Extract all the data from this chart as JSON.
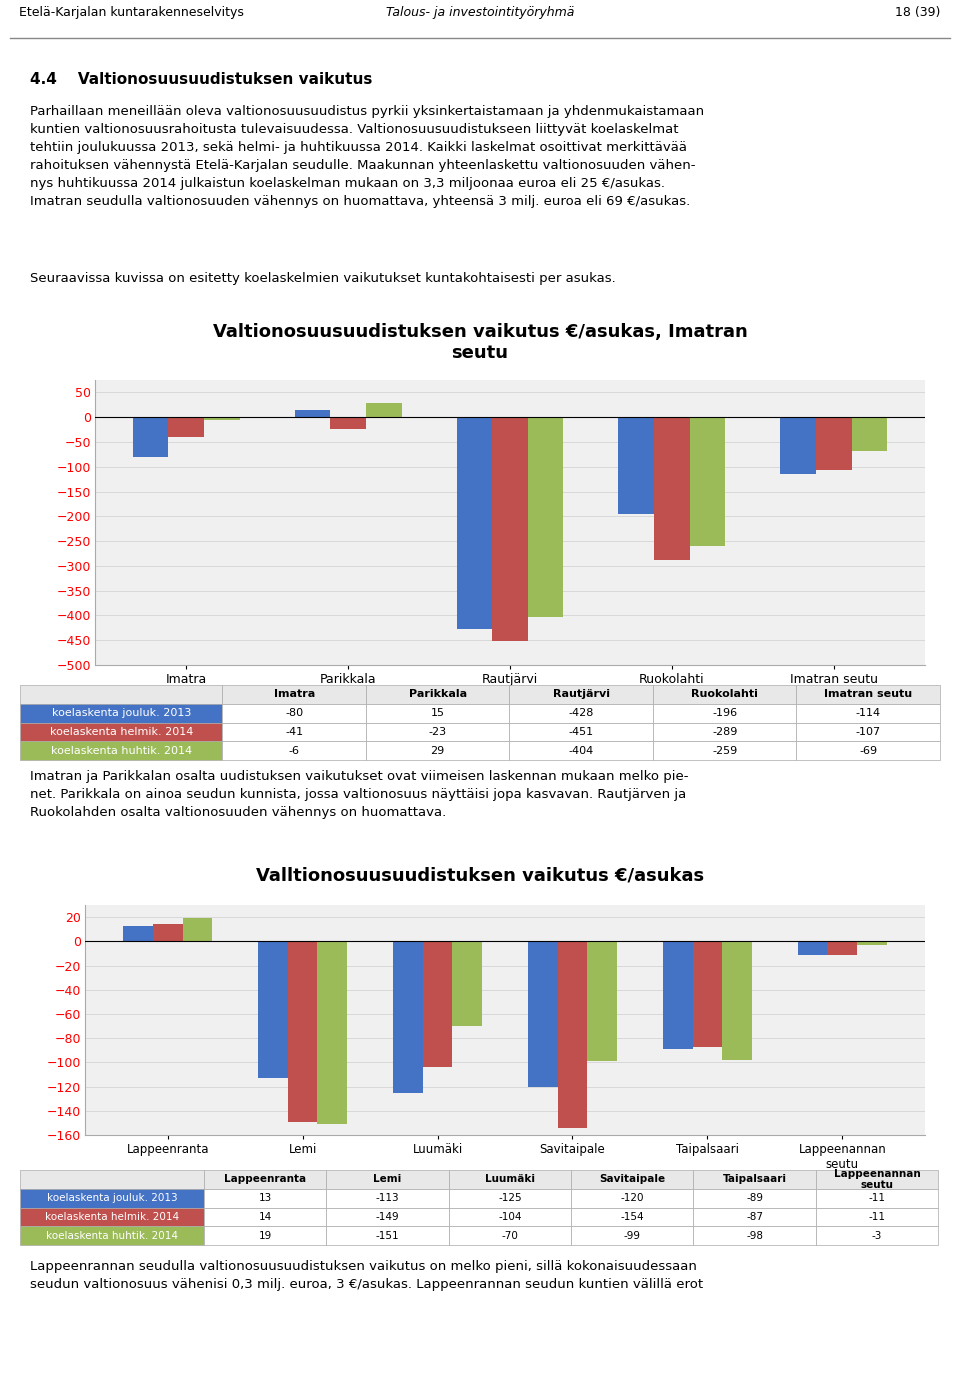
{
  "header_left": "Etelä-Karjalan kuntarakenneselvitys",
  "header_center": "Talous- ja investointityöryhmä",
  "header_right": "18 (39)",
  "section_title": "4.4    Valtionosuusuudistuksen vaikutus",
  "body_text1": "Parhaillaan meneillään oleva valtionosuusuudistus pyrkii yksinkertaistamaan ja yhdenmukaistamaan\nkuntien valtionosuusrahoitusta tulevaisuudessa. Valtionosuusuudistukseen liittyvät koelaskelmat\ntehtiin joulukuussa 2013, sekä helmi- ja huhtikuussa 2014. Kaikki laskelmat osoittivat merkittävää\nrahoituksen vähennystä Etelä-Karjalan seudulle. Maakunnan yhteenlaskettu valtionosuuden vähen-\nnys huhtikuussa 2014 julkaistun koelaskelman mukaan on 3,3 miljoonaa euroa eli 25 €/asukas.\nImatran seudulla valtionosuuden vähennys on huomattava, yhteensä 3 milj. euroa eli 69 €/asukas.",
  "body_text2": "Seuraavissa kuvissa on esitetty koelaskelmien vaikutukset kuntakohtaisesti per asukas.",
  "chart1_title": "Valtionosuusuudistuksen vaikutus €/asukas, Imatran\nseutu",
  "chart1_categories": [
    "Imatra",
    "Parikkala",
    "Rautjärvi",
    "Ruokolahti",
    "Imatran seutu"
  ],
  "chart1_series": [
    {
      "name": "koelaskenta jouluk. 2013",
      "values": [
        -80,
        15,
        -428,
        -196,
        -114
      ],
      "color": "#4472C4"
    },
    {
      "name": "koelaskenta helmik. 2014",
      "values": [
        -41,
        -23,
        -451,
        -289,
        -107
      ],
      "color": "#C0504D"
    },
    {
      "name": "koelaskenta huhtik. 2014",
      "values": [
        -6,
        29,
        -404,
        -259,
        -69
      ],
      "color": "#9BBB59"
    }
  ],
  "chart1_ylim": [
    -500,
    75
  ],
  "chart1_yticks": [
    50,
    0,
    -50,
    -100,
    -150,
    -200,
    -250,
    -300,
    -350,
    -400,
    -450,
    -500
  ],
  "body_text3": "Imatran ja Parikkalan osalta uudistuksen vaikutukset ovat viimeisen laskennan mukaan melko pie-\nnet. Parikkala on ainoa seudun kunnista, jossa valtionosuus näyttäisi jopa kasvavan. Rautjärven ja\nRuokolahden osalta valtionosuuden vähennys on huomattava.",
  "chart2_title": "Valltionosuusuudistuksen vaikutus €/asukas",
  "chart2_categories": [
    "Lappeenranta",
    "Lemi",
    "Luumäki",
    "Savitaipale",
    "Taipalsaari",
    "Lappeenannan\nseutu"
  ],
  "chart2_series": [
    {
      "name": "koelaskenta jouluk. 2013",
      "values": [
        13,
        -113,
        -125,
        -120,
        -89,
        -11
      ],
      "color": "#4472C4"
    },
    {
      "name": "koelaskenta helmik. 2014",
      "values": [
        14,
        -149,
        -104,
        -154,
        -87,
        -11
      ],
      "color": "#C0504D"
    },
    {
      "name": "koelaskenta huhtik. 2014",
      "values": [
        19,
        -151,
        -70,
        -99,
        -98,
        -3
      ],
      "color": "#9BBB59"
    }
  ],
  "chart2_ylim": [
    -160,
    30
  ],
  "chart2_yticks": [
    20,
    0,
    -20,
    -40,
    -60,
    -80,
    -100,
    -120,
    -140,
    -160
  ],
  "body_text4": "Lappeenrannan seudulla valtionosuusuudistuksen vaikutus on melko pieni, sillä kokonaisuudessaan\nseudun valtionosuus vähenisi 0,3 milj. euroa, 3 €/asukas. Lappeenrannan seudun kuntien välillä erot",
  "legend_labels": [
    "koelaskenta jouluk. 2013",
    "koelaskenta helmik. 2014",
    "koelaskenta huhtik. 2014"
  ],
  "legend_colors": [
    "#4472C4",
    "#C0504D",
    "#9BBB59"
  ],
  "bar_width": 0.22,
  "chart_face_color": "#F0F0F0",
  "grid_color": "#D8D8D8"
}
